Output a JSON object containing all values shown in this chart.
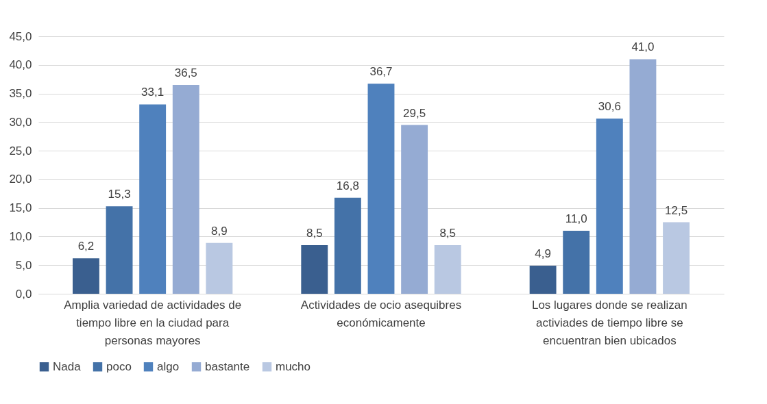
{
  "chart_data": {
    "type": "bar",
    "categories": [
      "Amplia variedad de actividades de tiempo libre en la ciudad para personas mayores",
      "Actividades de ocio asequibres económicamente",
      "Los lugares donde se realizan activiades de tiempo libre se encuentran bien ubicados"
    ],
    "series": [
      {
        "name": "Nada",
        "color": "#3a5f8f",
        "values": [
          6.2,
          8.5,
          4.9
        ],
        "value_labels": [
          "6,2",
          "8,5",
          "4,9"
        ]
      },
      {
        "name": "poco",
        "color": "#4472a8",
        "values": [
          15.3,
          16.8,
          11.0
        ],
        "value_labels": [
          "15,3",
          "16,8",
          "11,0"
        ]
      },
      {
        "name": "algo",
        "color": "#4f81bd",
        "values": [
          33.1,
          36.7,
          30.6
        ],
        "value_labels": [
          "33,1",
          "36,7",
          "30,6"
        ]
      },
      {
        "name": "bastante",
        "color": "#95abd3",
        "values": [
          36.5,
          29.5,
          41.0
        ],
        "value_labels": [
          "36,5",
          "29,5",
          "41,0"
        ]
      },
      {
        "name": "mucho",
        "color": "#b9c8e2",
        "values": [
          8.9,
          8.5,
          12.5
        ],
        "value_labels": [
          "8,9",
          "8,5",
          "12,5"
        ]
      }
    ],
    "ylim": [
      0,
      45
    ],
    "yticks": [
      {
        "value": 0,
        "label": "0,0"
      },
      {
        "value": 5,
        "label": "5,0"
      },
      {
        "value": 10,
        "label": "10,0"
      },
      {
        "value": 15,
        "label": "15,0"
      },
      {
        "value": 20,
        "label": "20,0"
      },
      {
        "value": 25,
        "label": "25,0"
      },
      {
        "value": 30,
        "label": "30,0"
      },
      {
        "value": 35,
        "label": "35,0"
      },
      {
        "value": 40,
        "label": "40,0"
      },
      {
        "value": 45,
        "label": "45,0"
      }
    ],
    "grid": true,
    "legend": "bottom"
  }
}
